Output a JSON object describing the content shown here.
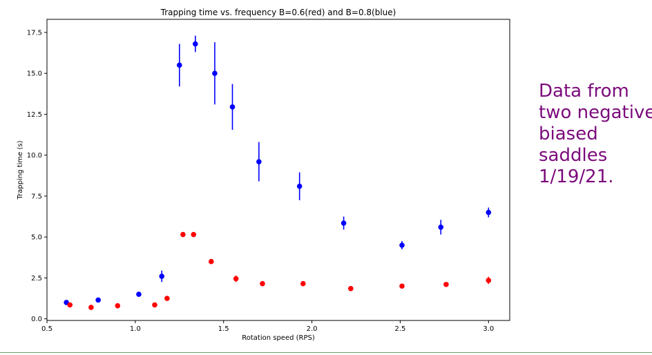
{
  "chart_data": {
    "type": "scatter",
    "title": "Trapping time vs. frequency B=0.6(red) and B=0.8(blue)",
    "xlabel": "Rotation speed (RPS)",
    "ylabel": "Trapping time (s)",
    "xlim": [
      0.5,
      3.12
    ],
    "ylim": [
      -0.1,
      18.3
    ],
    "xticks": [
      0.5,
      1.0,
      1.5,
      2.0,
      2.5,
      3.0
    ],
    "xtick_labels": [
      "0.5",
      "1.0",
      "1.5",
      "2.0",
      "2.5",
      "3.0"
    ],
    "yticks": [
      0.0,
      2.5,
      5.0,
      7.5,
      10.0,
      12.5,
      15.0,
      17.5
    ],
    "ytick_labels": [
      "0.0",
      "2.5",
      "5.0",
      "7.5",
      "10.0",
      "12.5",
      "15.0",
      "17.5"
    ],
    "grid": false,
    "series": [
      {
        "color": "#0000ff",
        "x": [
          0.61,
          0.79,
          1.02,
          1.15,
          1.25,
          1.34,
          1.45,
          1.55,
          1.7,
          1.93,
          2.18,
          2.51,
          2.73,
          3.0
        ],
        "y": [
          1.0,
          1.15,
          1.5,
          2.6,
          15.5,
          16.8,
          15.0,
          12.95,
          9.6,
          8.1,
          5.85,
          4.5,
          5.6,
          6.5
        ],
        "err": [
          0.05,
          0.05,
          0.05,
          0.35,
          1.3,
          0.5,
          1.9,
          1.4,
          1.2,
          0.85,
          0.4,
          0.25,
          0.45,
          0.3
        ]
      },
      {
        "color": "#ff0000",
        "x": [
          0.63,
          0.75,
          0.9,
          1.11,
          1.18,
          1.27,
          1.33,
          1.43,
          1.57,
          1.72,
          1.95,
          2.22,
          2.51,
          2.76,
          3.0
        ],
        "y": [
          0.85,
          0.7,
          0.8,
          0.85,
          1.25,
          5.15,
          5.15,
          3.5,
          2.45,
          2.15,
          2.15,
          1.85,
          2.0,
          2.1,
          2.35
        ],
        "err": [
          0.05,
          0.05,
          0.05,
          0.05,
          0.1,
          0.05,
          0.05,
          0.05,
          0.2,
          0.15,
          0.05,
          0.05,
          0.05,
          0.05,
          0.22
        ]
      }
    ]
  },
  "annotation": {
    "lines": [
      "Data from",
      "two negative",
      "biased",
      "saddles",
      "1/19/21."
    ]
  }
}
